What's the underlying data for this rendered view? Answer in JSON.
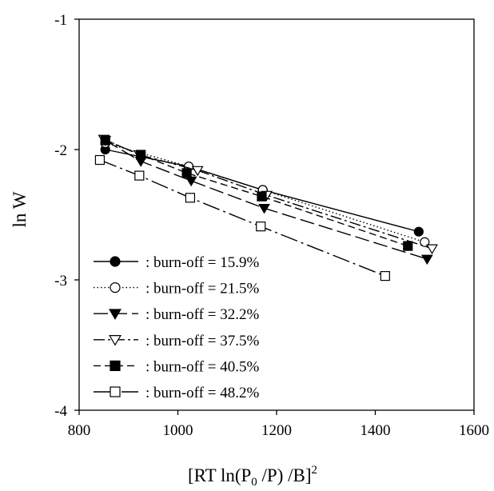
{
  "chart_data": {
    "type": "line",
    "xlabel": "[RT ln(P0 /P) /B]2",
    "xlabel_parts": {
      "pre": "[RT ln(P",
      "sub": "0",
      "mid": " /P) /B]",
      "sup": "2"
    },
    "ylabel": "ln W",
    "xlim": [
      800,
      1600
    ],
    "ylim": [
      -4,
      -1
    ],
    "xticks": [
      800,
      1000,
      1200,
      1400,
      1600
    ],
    "yticks": [
      -4,
      -3,
      -2,
      -1
    ],
    "grid": false,
    "legend_placement": "bottom-left",
    "series": [
      {
        "name": ": burn-off = 15.9%",
        "marker": "circle",
        "fill": "#000000",
        "dash": "none",
        "x": [
          853,
          1022,
          1172,
          1488
        ],
        "y": [
          -2.0,
          -2.13,
          -2.31,
          -2.63
        ]
      },
      {
        "name": ": burn-off = 21.5%",
        "marker": "circle",
        "fill": "#ffffff",
        "dash": "dotted",
        "x": [
          853,
          1022,
          1172,
          1500
        ],
        "y": [
          -1.95,
          -2.13,
          -2.31,
          -2.71
        ]
      },
      {
        "name": ": burn-off = 32.2%",
        "marker": "triangle-down",
        "fill": "#000000",
        "dash": "long-dash",
        "x": [
          853,
          925,
          1027,
          1175,
          1505
        ],
        "y": [
          -1.93,
          -2.09,
          -2.24,
          -2.45,
          -2.84
        ]
      },
      {
        "name": ": burn-off = 37.5%",
        "marker": "triangle-down",
        "fill": "#ffffff",
        "dash": "dash-dot",
        "x": [
          850,
          922,
          1040,
          1180,
          1515
        ],
        "y": [
          -1.92,
          -2.04,
          -2.16,
          -2.35,
          -2.76
        ]
      },
      {
        "name": ": burn-off = 40.5%",
        "marker": "square",
        "fill": "#000000",
        "dash": "short-dash",
        "x": [
          853,
          925,
          1018,
          1170,
          1466
        ],
        "y": [
          -1.93,
          -2.04,
          -2.18,
          -2.36,
          -2.74
        ]
      },
      {
        "name": ": burn-off = 48.2%",
        "marker": "square",
        "fill": "#ffffff",
        "dash": "dash-dot-long",
        "x": [
          842,
          922,
          1025,
          1168,
          1420
        ],
        "y": [
          -2.08,
          -2.2,
          -2.37,
          -2.59,
          -2.97
        ]
      }
    ]
  }
}
